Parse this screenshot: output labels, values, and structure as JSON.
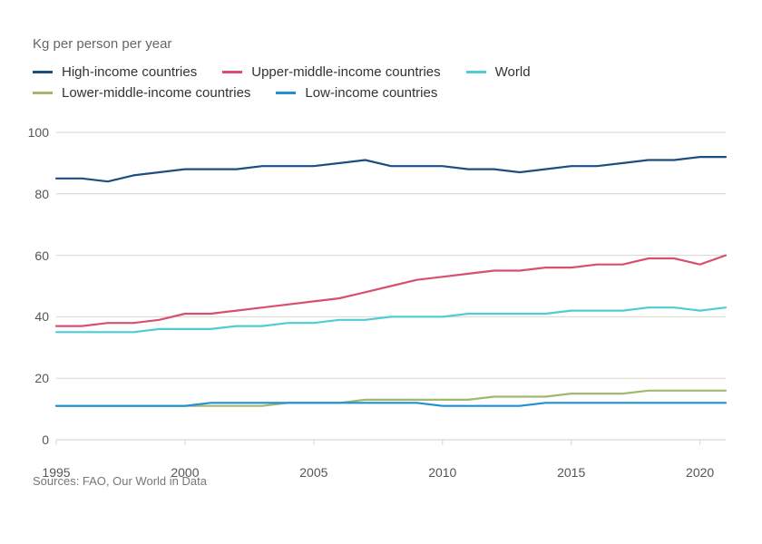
{
  "subtitle": "Kg per person per year",
  "sources": "Sources: FAO, Our World in Data",
  "chart": {
    "type": "line",
    "background_color": "#ffffff",
    "grid_color": "#d9d6cf",
    "axis_font_color": "#555555",
    "axis_fontsize": 14,
    "line_width": 2.2,
    "x": {
      "min": 1995,
      "max": 2021,
      "ticks": [
        1995,
        2000,
        2005,
        2010,
        2015,
        2020
      ]
    },
    "y": {
      "min": 0,
      "max": 105,
      "ticks": [
        0,
        20,
        40,
        60,
        80,
        100
      ]
    },
    "legend_rows": [
      [
        "high_income",
        "upper_middle",
        "world"
      ],
      [
        "lower_middle",
        "low_income"
      ]
    ],
    "series": {
      "high_income": {
        "label": "High-income countries",
        "color": "#1c4e80",
        "values": [
          85,
          85,
          84,
          86,
          87,
          88,
          88,
          88,
          89,
          89,
          89,
          90,
          91,
          89,
          89,
          89,
          88,
          88,
          87,
          88,
          89,
          89,
          90,
          91,
          91,
          92,
          92
        ]
      },
      "upper_middle": {
        "label": "Upper-middle-income countries",
        "color": "#d94f70",
        "values": [
          37,
          37,
          38,
          38,
          39,
          41,
          41,
          42,
          43,
          44,
          45,
          46,
          48,
          50,
          52,
          53,
          54,
          55,
          55,
          56,
          56,
          57,
          57,
          59,
          59,
          57,
          60
        ]
      },
      "world": {
        "label": "World",
        "color": "#4fcdd5",
        "values": [
          35,
          35,
          35,
          35,
          36,
          36,
          36,
          37,
          37,
          38,
          38,
          39,
          39,
          40,
          40,
          40,
          41,
          41,
          41,
          41,
          42,
          42,
          42,
          43,
          43,
          42,
          43
        ]
      },
      "lower_middle": {
        "label": "Lower-middle-income countries",
        "color": "#a2b86c",
        "values": [
          11,
          11,
          11,
          11,
          11,
          11,
          11,
          11,
          11,
          12,
          12,
          12,
          13,
          13,
          13,
          13,
          13,
          14,
          14,
          14,
          15,
          15,
          15,
          16,
          16,
          16,
          16
        ]
      },
      "low_income": {
        "label": "Low-income countries",
        "color": "#1f8fd6",
        "values": [
          11,
          11,
          11,
          11,
          11,
          11,
          12,
          12,
          12,
          12,
          12,
          12,
          12,
          12,
          12,
          11,
          11,
          11,
          11,
          12,
          12,
          12,
          12,
          12,
          12,
          12,
          12
        ]
      }
    }
  }
}
